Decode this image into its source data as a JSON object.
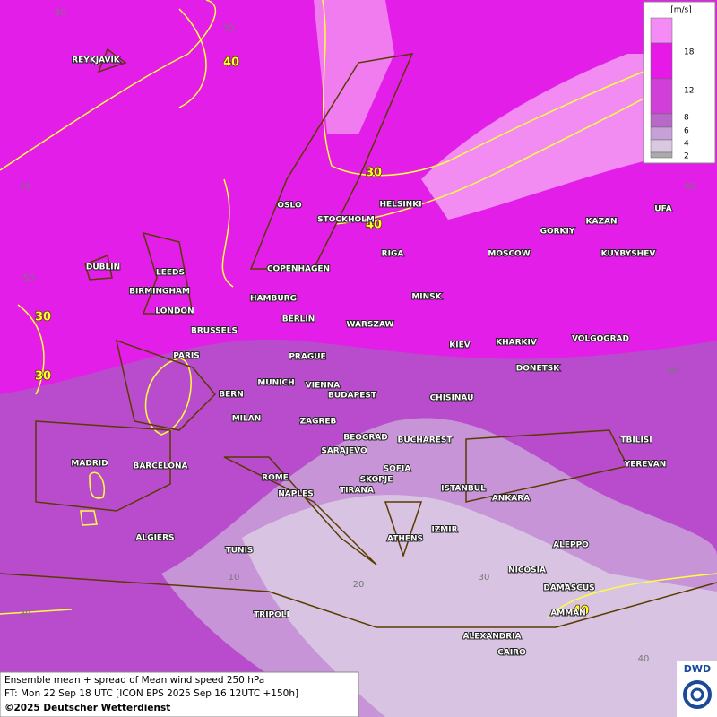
{
  "map": {
    "legend": {
      "unit": "[m/s]",
      "levels": [
        2,
        4,
        6,
        8,
        12,
        18
      ]
    },
    "cities": [
      "REYKJAVIK",
      "OSLO",
      "STOCKHOLM",
      "HELSINKI",
      "RIGA",
      "DUBLIN",
      "LEEDS",
      "BIRMINGHAM",
      "LONDON",
      "COPENHAGEN",
      "HAMBURG",
      "BERLIN",
      "MINSK",
      "MOSCOW",
      "GORKIY",
      "KAZAN",
      "UFA",
      "KUYBYSHEV",
      "BRUSSELS",
      "WARSZAW",
      "KIEV",
      "KHARKIV",
      "VOLGOGRAD",
      "PARIS",
      "PRAGUE",
      "DONETSK",
      "BERN",
      "MUNICH",
      "VIENNA",
      "BUDAPEST",
      "CHISINAU",
      "MILAN",
      "ZAGREB",
      "BEOGRAD",
      "BUCHAREST",
      "TBILISI",
      "MADRID",
      "BARCELONA",
      "SARAJEVO",
      "SOFIA",
      "YEREVAN",
      "ROME",
      "SKOPJE",
      "ISTANBUL",
      "NAPLES",
      "TIRANA",
      "ANKARA",
      "IZMIR",
      "ATHENS",
      "ALGIERS",
      "ALEPPO",
      "TUNIS",
      "NICOSIA",
      "DAMASCUS",
      "AMMAN",
      "TRIPOLI",
      "ALEXANDRIA",
      "CAIRO"
    ],
    "contour_labels": [
      40,
      30,
      40,
      30,
      30,
      40
    ],
    "graticule_labels": [
      30,
      70,
      20,
      60,
      50,
      50,
      30,
      10,
      20,
      30,
      40
    ]
  },
  "footer": {
    "line1": "Ensemble mean + spread of Mean wind speed 250 hPa",
    "line2": "FT: Mon 22 Sep 18 UTC [ICON EPS 2025 Sep 16 12UTC +150h]",
    "line3": "©2025 Deutscher Wetterdienst"
  },
  "logo": "DWD"
}
